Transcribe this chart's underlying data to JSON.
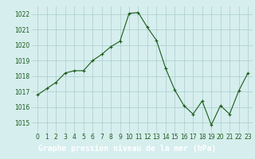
{
  "x": [
    0,
    1,
    2,
    3,
    4,
    5,
    6,
    7,
    8,
    9,
    10,
    11,
    12,
    13,
    14,
    15,
    16,
    17,
    18,
    19,
    20,
    21,
    22,
    23
  ],
  "y": [
    1016.8,
    1017.2,
    1017.6,
    1018.2,
    1018.35,
    1018.35,
    1019.0,
    1019.4,
    1019.9,
    1020.25,
    1022.05,
    1022.1,
    1021.15,
    1020.3,
    1018.5,
    1017.1,
    1016.1,
    1015.55,
    1016.4,
    1014.85,
    1016.1,
    1015.55,
    1017.05,
    1018.2
  ],
  "line_color": "#1a5c1a",
  "marker": "+",
  "marker_color": "#1a5c1a",
  "bg_color": "#d6eeee",
  "grid_color": "#aacccc",
  "xlabel": "Graphe pression niveau de la mer (hPa)",
  "xlabel_bg": "#2d7a2d",
  "xlabel_color": "#ffffff",
  "ylim": [
    1014.5,
    1022.5
  ],
  "yticks": [
    1015,
    1016,
    1017,
    1018,
    1019,
    1020,
    1021,
    1022
  ],
  "xticks": [
    0,
    1,
    2,
    3,
    4,
    5,
    6,
    7,
    8,
    9,
    10,
    11,
    12,
    13,
    14,
    15,
    16,
    17,
    18,
    19,
    20,
    21,
    22,
    23
  ],
  "tick_fontsize": 5.5,
  "label_fontsize": 7.0
}
